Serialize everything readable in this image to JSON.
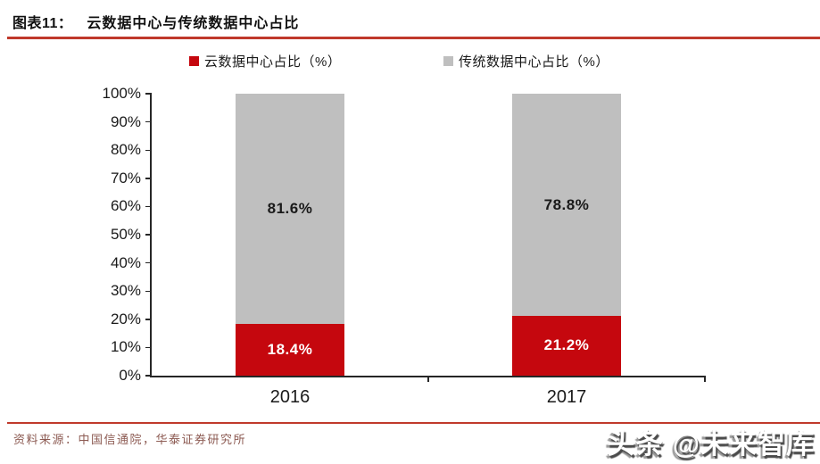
{
  "header": {
    "figure_label": "图表11：",
    "title": "云数据中心与传统数据中心占比"
  },
  "legend": {
    "items": [
      {
        "label": "云数据中心占比（%）",
        "color": "#C5070E"
      },
      {
        "label": "传统数据中心占比（%）",
        "color": "#BFBFBF"
      }
    ]
  },
  "chart_data": {
    "type": "bar",
    "stacked": true,
    "title": "云数据中心与传统数据中心占比",
    "categories": [
      "2016",
      "2017"
    ],
    "series": [
      {
        "name": "云数据中心占比（%）",
        "color": "#C5070E",
        "label_color": "#FFFFFF",
        "values": [
          18.4,
          21.2
        ],
        "labels": [
          "18.4%",
          "21.2%"
        ]
      },
      {
        "name": "传统数据中心占比（%）",
        "color": "#BFBFBF",
        "label_color": "#1A1A1A",
        "values": [
          81.6,
          78.8
        ],
        "labels": [
          "81.6%",
          "78.8%"
        ]
      }
    ],
    "ylim": [
      0,
      100
    ],
    "yticks": [
      "0%",
      "10%",
      "20%",
      "30%",
      "40%",
      "50%",
      "60%",
      "70%",
      "80%",
      "90%",
      "100%"
    ],
    "grid": false,
    "legend_position": "top"
  },
  "footer": {
    "source": "资料来源：中国信通院，华泰证券研究所",
    "watermark": "头条 @未来智库"
  }
}
